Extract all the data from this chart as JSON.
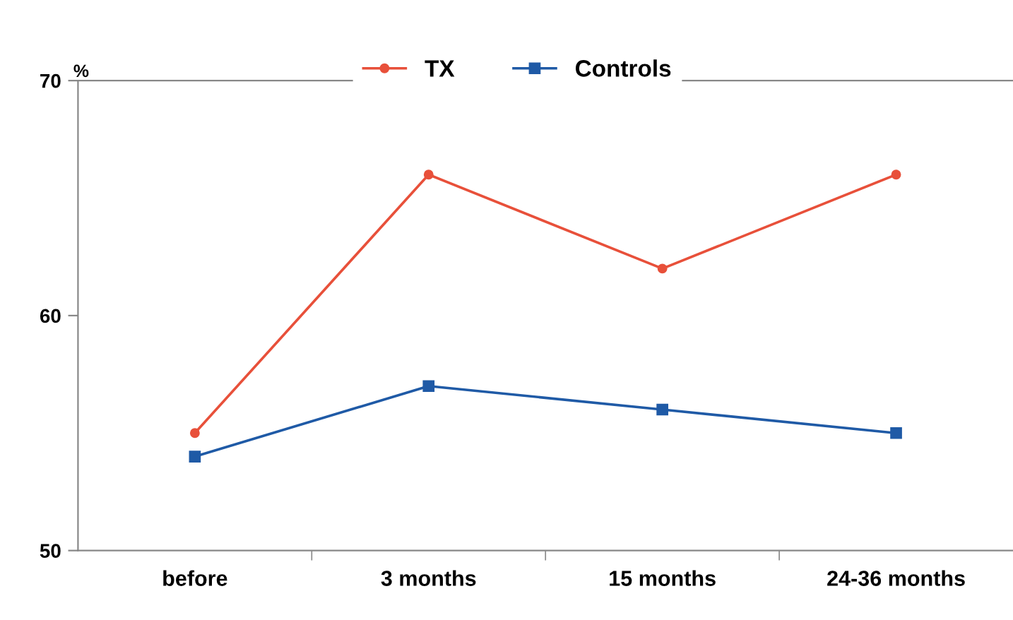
{
  "chart_data": {
    "type": "line",
    "ylabel": "%",
    "categories": [
      "before",
      "3 months",
      "15 months",
      "24-36 months"
    ],
    "series": [
      {
        "name": "TX",
        "color": "#e8503a",
        "marker": "circle",
        "values": [
          55,
          66,
          62,
          66
        ]
      },
      {
        "name": "Controls",
        "color": "#1f5aa6",
        "marker": "square",
        "values": [
          54,
          57,
          56,
          55
        ]
      }
    ],
    "ylim": [
      50,
      70
    ],
    "yticks": [
      50,
      60,
      70
    ],
    "grid": false,
    "legend": "top"
  }
}
